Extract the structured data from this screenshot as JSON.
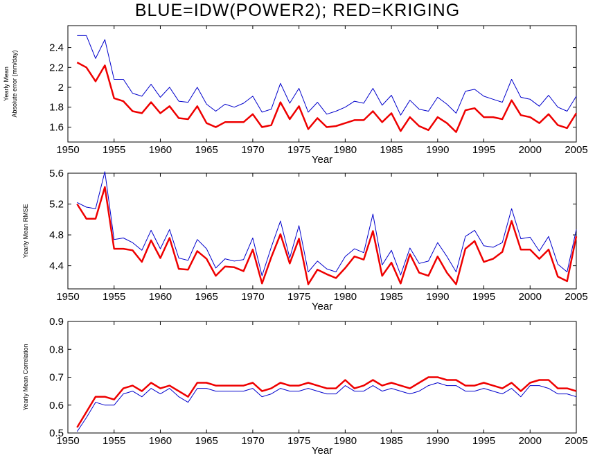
{
  "title": "BLUE=IDW(POWER2); RED=KRIGING",
  "colors": {
    "blue": "#0000cc",
    "red": "#ee0000",
    "axis": "#000000"
  },
  "chart_data": [
    {
      "type": "line",
      "xlabel": "Year",
      "ylabel_lines": [
        "Yearly Mean",
        "Absolute error (mm/day)"
      ],
      "xlim": [
        1950,
        2005
      ],
      "ylim": [
        1.45,
        2.62
      ],
      "xticks": [
        1950,
        1955,
        1960,
        1965,
        1970,
        1975,
        1980,
        1985,
        1990,
        1995,
        2000,
        2005
      ],
      "xtick_labels": [
        "1950",
        "1955",
        "1960",
        "1965",
        "1970",
        "1975",
        "1980",
        "1985",
        "1990",
        "1995",
        "2000",
        "2005"
      ],
      "yticks": [
        1.6,
        1.8,
        2.0,
        2.2,
        2.4
      ],
      "ytick_labels": [
        "1.6",
        "1.8",
        "2",
        "2.2",
        "2.4"
      ],
      "x": [
        1951,
        1952,
        1953,
        1954,
        1955,
        1956,
        1957,
        1958,
        1959,
        1960,
        1961,
        1962,
        1963,
        1964,
        1965,
        1966,
        1967,
        1968,
        1969,
        1970,
        1971,
        1972,
        1973,
        1974,
        1975,
        1976,
        1977,
        1978,
        1979,
        1980,
        1981,
        1982,
        1983,
        1984,
        1985,
        1986,
        1987,
        1988,
        1989,
        1990,
        1991,
        1992,
        1993,
        1994,
        1995,
        1996,
        1997,
        1998,
        1999,
        2000,
        2001,
        2002,
        2003,
        2004,
        2005
      ],
      "series": [
        {
          "color_key": "blue",
          "width": 1,
          "values": [
            2.52,
            2.52,
            2.29,
            2.48,
            2.08,
            2.08,
            1.94,
            1.91,
            2.03,
            1.9,
            2.0,
            1.86,
            1.85,
            2.0,
            1.83,
            1.76,
            1.83,
            1.8,
            1.84,
            1.91,
            1.75,
            1.78,
            2.04,
            1.84,
            1.99,
            1.75,
            1.85,
            1.73,
            1.76,
            1.8,
            1.86,
            1.84,
            1.99,
            1.82,
            1.92,
            1.72,
            1.87,
            1.78,
            1.76,
            1.9,
            1.83,
            1.74,
            1.96,
            1.98,
            1.91,
            1.88,
            1.85,
            2.08,
            1.9,
            1.88,
            1.81,
            1.92,
            1.8,
            1.76,
            1.91
          ]
        },
        {
          "color_key": "red",
          "width": 2.5,
          "values": [
            2.25,
            2.2,
            2.06,
            2.22,
            1.89,
            1.86,
            1.76,
            1.74,
            1.85,
            1.74,
            1.81,
            1.69,
            1.68,
            1.81,
            1.64,
            1.6,
            1.65,
            1.65,
            1.65,
            1.73,
            1.6,
            1.62,
            1.85,
            1.68,
            1.81,
            1.58,
            1.69,
            1.6,
            1.61,
            1.64,
            1.67,
            1.67,
            1.76,
            1.65,
            1.74,
            1.56,
            1.7,
            1.61,
            1.57,
            1.7,
            1.64,
            1.55,
            1.77,
            1.79,
            1.7,
            1.7,
            1.68,
            1.87,
            1.72,
            1.7,
            1.64,
            1.73,
            1.62,
            1.59,
            1.74
          ]
        }
      ]
    },
    {
      "type": "line",
      "xlabel": "Year",
      "ylabel_lines": [
        "Yearly Mean RMSE"
      ],
      "xlim": [
        1950,
        2005
      ],
      "ylim": [
        4.1,
        5.6
      ],
      "xticks": [
        1950,
        1955,
        1960,
        1965,
        1970,
        1975,
        1980,
        1985,
        1990,
        1995,
        2000,
        2005
      ],
      "xtick_labels": [
        "1950",
        "1955",
        "1960",
        "1965",
        "1970",
        "1975",
        "1980",
        "1985",
        "1990",
        "1995",
        "2000",
        "2005"
      ],
      "yticks": [
        4.4,
        4.8,
        5.2,
        5.6
      ],
      "ytick_labels": [
        "4.4",
        "4.8",
        "5.2",
        "5.6"
      ],
      "x": [
        1951,
        1952,
        1953,
        1954,
        1955,
        1956,
        1957,
        1958,
        1959,
        1960,
        1961,
        1962,
        1963,
        1964,
        1965,
        1966,
        1967,
        1968,
        1969,
        1970,
        1971,
        1972,
        1973,
        1974,
        1975,
        1976,
        1977,
        1978,
        1979,
        1980,
        1981,
        1982,
        1983,
        1984,
        1985,
        1986,
        1987,
        1988,
        1989,
        1990,
        1991,
        1992,
        1993,
        1994,
        1995,
        1996,
        1997,
        1998,
        1999,
        2000,
        2001,
        2002,
        2003,
        2004,
        2005
      ],
      "series": [
        {
          "color_key": "blue",
          "width": 1,
          "values": [
            5.22,
            5.16,
            5.14,
            5.62,
            4.74,
            4.76,
            4.7,
            4.6,
            4.86,
            4.62,
            4.87,
            4.5,
            4.47,
            4.74,
            4.62,
            4.37,
            4.49,
            4.46,
            4.48,
            4.76,
            4.27,
            4.64,
            4.98,
            4.5,
            4.92,
            4.32,
            4.46,
            4.36,
            4.32,
            4.52,
            4.62,
            4.57,
            5.07,
            4.41,
            4.6,
            4.28,
            4.63,
            4.43,
            4.46,
            4.7,
            4.52,
            4.32,
            4.78,
            4.86,
            4.66,
            4.64,
            4.7,
            5.14,
            4.75,
            4.77,
            4.59,
            4.78,
            4.42,
            4.32,
            4.87
          ]
        },
        {
          "color_key": "red",
          "width": 2.5,
          "values": [
            5.2,
            5.01,
            5.01,
            5.42,
            4.62,
            4.62,
            4.6,
            4.45,
            4.73,
            4.5,
            4.76,
            4.36,
            4.35,
            4.59,
            4.49,
            4.27,
            4.39,
            4.38,
            4.33,
            4.61,
            4.17,
            4.51,
            4.81,
            4.43,
            4.75,
            4.16,
            4.35,
            4.29,
            4.24,
            4.37,
            4.52,
            4.48,
            4.85,
            4.27,
            4.44,
            4.17,
            4.55,
            4.31,
            4.27,
            4.52,
            4.31,
            4.16,
            4.62,
            4.72,
            4.45,
            4.49,
            4.58,
            4.98,
            4.61,
            4.61,
            4.49,
            4.61,
            4.26,
            4.2,
            4.78
          ]
        }
      ]
    },
    {
      "type": "line",
      "xlabel": "Year",
      "ylabel_lines": [
        "Yearly Mean Correlation"
      ],
      "xlim": [
        1950,
        2005
      ],
      "ylim": [
        0.5,
        0.9
      ],
      "xticks": [
        1950,
        1955,
        1960,
        1965,
        1970,
        1975,
        1980,
        1985,
        1990,
        1995,
        2000,
        2005
      ],
      "xtick_labels": [
        "1950",
        "1955",
        "1960",
        "1965",
        "1970",
        "1975",
        "1980",
        "1985",
        "1990",
        "1995",
        "2000",
        "2005"
      ],
      "yticks": [
        0.5,
        0.6,
        0.7,
        0.8,
        0.9
      ],
      "ytick_labels": [
        "0.5",
        "0.6",
        "0.7",
        "0.8",
        "0.9"
      ],
      "x": [
        1951,
        1952,
        1953,
        1954,
        1955,
        1956,
        1957,
        1958,
        1959,
        1960,
        1961,
        1962,
        1963,
        1964,
        1965,
        1966,
        1967,
        1968,
        1969,
        1970,
        1971,
        1972,
        1973,
        1974,
        1975,
        1976,
        1977,
        1978,
        1979,
        1980,
        1981,
        1982,
        1983,
        1984,
        1985,
        1986,
        1987,
        1988,
        1989,
        1990,
        1991,
        1992,
        1993,
        1994,
        1995,
        1996,
        1997,
        1998,
        1999,
        2000,
        2001,
        2002,
        2003,
        2004,
        2005
      ],
      "series": [
        {
          "color_key": "blue",
          "width": 1,
          "values": [
            0.505,
            0.555,
            0.61,
            0.6,
            0.6,
            0.64,
            0.65,
            0.63,
            0.66,
            0.64,
            0.66,
            0.63,
            0.61,
            0.66,
            0.66,
            0.65,
            0.65,
            0.65,
            0.65,
            0.66,
            0.63,
            0.64,
            0.66,
            0.65,
            0.65,
            0.66,
            0.65,
            0.64,
            0.64,
            0.67,
            0.65,
            0.65,
            0.67,
            0.65,
            0.66,
            0.65,
            0.64,
            0.65,
            0.67,
            0.68,
            0.67,
            0.67,
            0.65,
            0.65,
            0.66,
            0.65,
            0.64,
            0.66,
            0.63,
            0.67,
            0.67,
            0.66,
            0.64,
            0.64,
            0.63
          ]
        },
        {
          "color_key": "red",
          "width": 2.5,
          "values": [
            0.52,
            0.575,
            0.63,
            0.63,
            0.62,
            0.66,
            0.67,
            0.65,
            0.68,
            0.66,
            0.67,
            0.65,
            0.63,
            0.68,
            0.68,
            0.67,
            0.67,
            0.67,
            0.67,
            0.68,
            0.65,
            0.66,
            0.68,
            0.67,
            0.67,
            0.68,
            0.67,
            0.66,
            0.66,
            0.69,
            0.66,
            0.67,
            0.69,
            0.67,
            0.68,
            0.67,
            0.66,
            0.68,
            0.7,
            0.7,
            0.69,
            0.69,
            0.67,
            0.67,
            0.68,
            0.67,
            0.66,
            0.68,
            0.65,
            0.68,
            0.69,
            0.69,
            0.66,
            0.66,
            0.65
          ]
        }
      ]
    }
  ]
}
